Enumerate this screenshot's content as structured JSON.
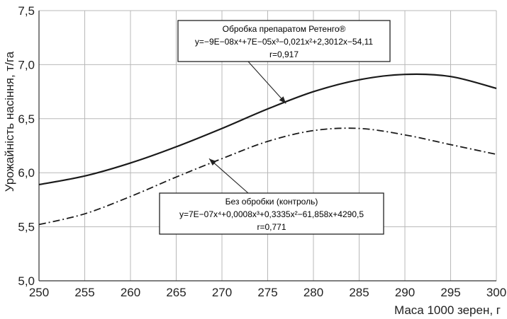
{
  "chart_data": {
    "type": "line",
    "title": "",
    "xlabel": "Маса 1000 зерен, г",
    "ylabel": "Урожайність насіння, т/га",
    "xlim": [
      250,
      300
    ],
    "ylim": [
      5.0,
      7.5
    ],
    "x_ticks": [
      "250",
      "255",
      "260",
      "265",
      "270",
      "275",
      "280",
      "285",
      "290",
      "295",
      "300"
    ],
    "y_ticks": [
      "5,0",
      "5,5",
      "6,0",
      "6,5",
      "7,0",
      "7,5"
    ],
    "grid": true,
    "x": [
      250,
      255,
      260,
      265,
      270,
      275,
      280,
      285,
      290,
      295,
      300
    ],
    "series": [
      {
        "style": "solid",
        "color": "#1a1a1a",
        "values": [
          5.89,
          5.97,
          6.09,
          6.24,
          6.41,
          6.59,
          6.75,
          6.86,
          6.91,
          6.89,
          6.78
        ]
      },
      {
        "style": "dashdot",
        "color": "#1a1a1a",
        "values": [
          5.52,
          5.62,
          5.78,
          5.96,
          6.13,
          6.29,
          6.39,
          6.41,
          6.35,
          6.26,
          6.17
        ]
      }
    ],
    "annotations": [
      {
        "lines": [
          "Обробка препаратом Ретенго®",
          "y=−9E−08x⁴+7E−05x³−0,021x²+2,3012x−54,11",
          "r=0,917"
        ],
        "target": [
          277,
          6.64
        ]
      },
      {
        "lines": [
          "Без обробки (контроль)",
          "y=7E−07x⁴+0,0008x³+0,3335x²−61,858x+4290,5",
          "r=0,771"
        ],
        "target": [
          268.6,
          6.13
        ]
      }
    ]
  }
}
